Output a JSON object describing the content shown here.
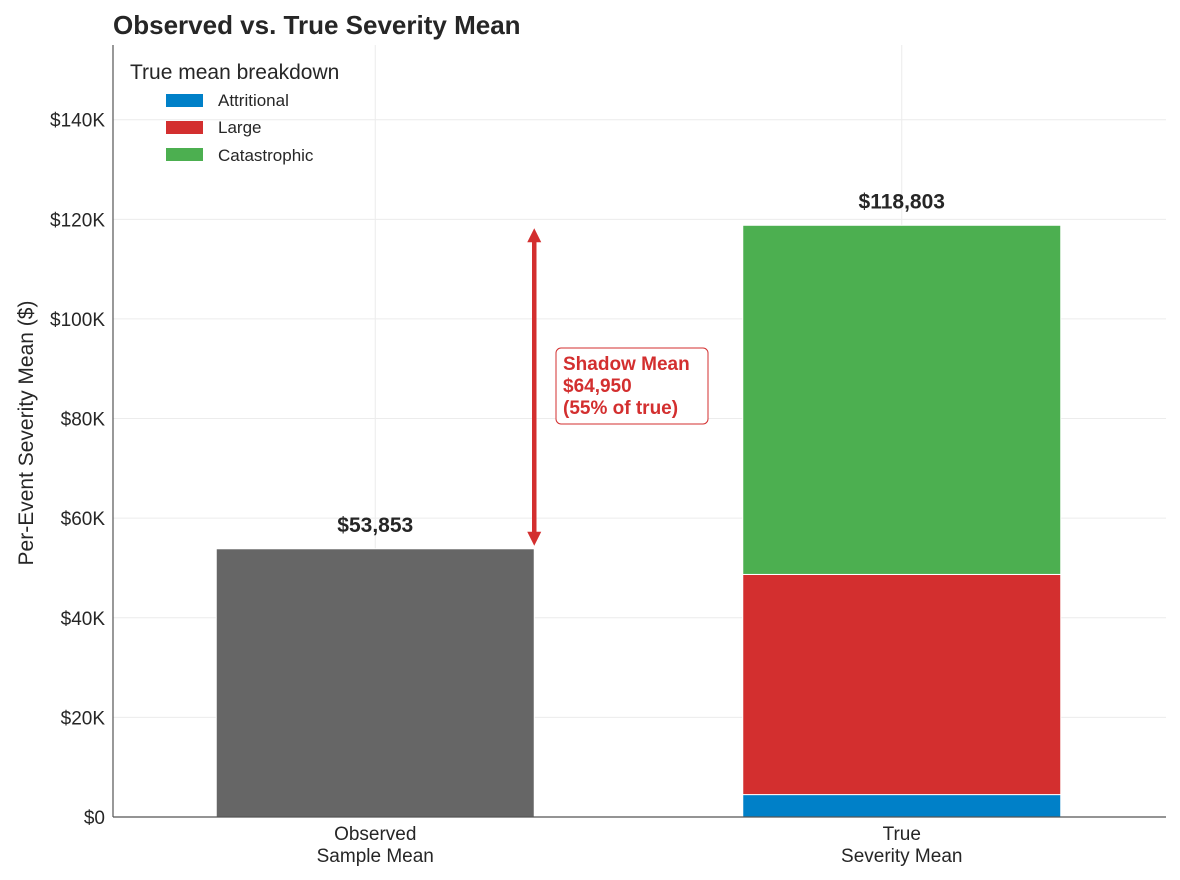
{
  "chart_data": {
    "type": "bar",
    "title": "Observed vs. True Severity Mean",
    "xlabel": "",
    "ylabel": "Per-Event Severity Mean ($)",
    "ylim": [
      0,
      155000
    ],
    "yticks": [
      0,
      20000,
      40000,
      60000,
      80000,
      100000,
      120000,
      140000
    ],
    "ytick_labels": [
      "$0",
      "$20K",
      "$40K",
      "$60K",
      "$80K",
      "$100K",
      "$120K",
      "$140K"
    ],
    "grid": true,
    "categories": [
      [
        "Observed",
        "Sample Mean"
      ],
      [
        "True",
        "Severity Mean"
      ]
    ],
    "observed": {
      "value": 53853,
      "label": "$53,853",
      "color": "#666666"
    },
    "true_stack": {
      "total": 118803,
      "label": "$118,803",
      "segments": [
        {
          "name": "Attritional",
          "value": 4500,
          "color": "#0080c8"
        },
        {
          "name": "Large",
          "value": 44200,
          "color": "#d32f2f"
        },
        {
          "name": "Catastrophic",
          "value": 70103,
          "color": "#4caf50"
        }
      ]
    },
    "legend": {
      "title": "True mean breakdown",
      "placement": "top-left",
      "entries": [
        "Attritional",
        "Large",
        "Catastrophic"
      ]
    },
    "annotation": {
      "from_value": 53853,
      "to_value": 118803,
      "lines": [
        "Shadow Mean",
        "$64,950",
        "(55% of true)"
      ],
      "color": "#d32f2f"
    }
  }
}
